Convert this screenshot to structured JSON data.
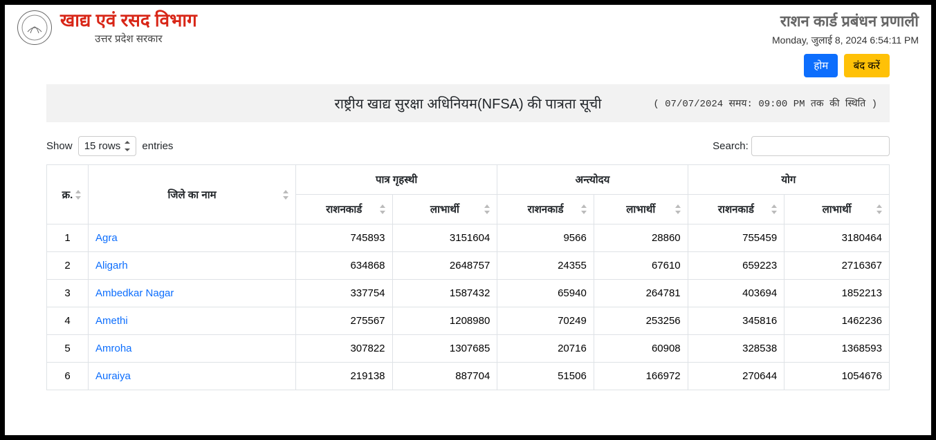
{
  "header": {
    "dept_title": "खाद्य एवं रसद विभाग",
    "dept_sub": "उत्तर प्रदेश सरकार",
    "sys_title": "राशन कार्ड प्रबंधन प्रणाली",
    "timestamp": "Monday, जुलाई 8, 2024 6:54:11 PM"
  },
  "buttons": {
    "home": "होम",
    "close": "बंद करें"
  },
  "page": {
    "title": "राष्ट्रीय खाद्य सुरक्षा अधिनियम(NFSA) की पात्रता सूची",
    "status_note": "( 07/07/2024 समय: 09:00 PM तक की स्थिति )"
  },
  "controls": {
    "show_label": "Show",
    "rows_value": "15 rows",
    "entries_label": "entries",
    "search_label": "Search:"
  },
  "table": {
    "head_group": {
      "idx": "क्र.",
      "district": "जिले का नाम",
      "phh": "पात्र गृहस्थी",
      "aay": "अन्त्योदय",
      "total": "योग"
    },
    "head_sub": {
      "rc": "राशनकार्ड",
      "ben": "लाभार्थी"
    },
    "rows": [
      {
        "idx": "1",
        "name": "Agra",
        "phh_rc": "745893",
        "phh_ben": "3151604",
        "aay_rc": "9566",
        "aay_ben": "28860",
        "tot_rc": "755459",
        "tot_ben": "3180464"
      },
      {
        "idx": "2",
        "name": "Aligarh",
        "phh_rc": "634868",
        "phh_ben": "2648757",
        "aay_rc": "24355",
        "aay_ben": "67610",
        "tot_rc": "659223",
        "tot_ben": "2716367"
      },
      {
        "idx": "3",
        "name": "Ambedkar Nagar",
        "phh_rc": "337754",
        "phh_ben": "1587432",
        "aay_rc": "65940",
        "aay_ben": "264781",
        "tot_rc": "403694",
        "tot_ben": "1852213"
      },
      {
        "idx": "4",
        "name": "Amethi",
        "phh_rc": "275567",
        "phh_ben": "1208980",
        "aay_rc": "70249",
        "aay_ben": "253256",
        "tot_rc": "345816",
        "tot_ben": "1462236"
      },
      {
        "idx": "5",
        "name": "Amroha",
        "phh_rc": "307822",
        "phh_ben": "1307685",
        "aay_rc": "20716",
        "aay_ben": "60908",
        "tot_rc": "328538",
        "tot_ben": "1368593"
      },
      {
        "idx": "6",
        "name": "Auraiya",
        "phh_rc": "219138",
        "phh_ben": "887704",
        "aay_rc": "51506",
        "aay_ben": "166972",
        "tot_rc": "270644",
        "tot_ben": "1054676"
      }
    ]
  }
}
